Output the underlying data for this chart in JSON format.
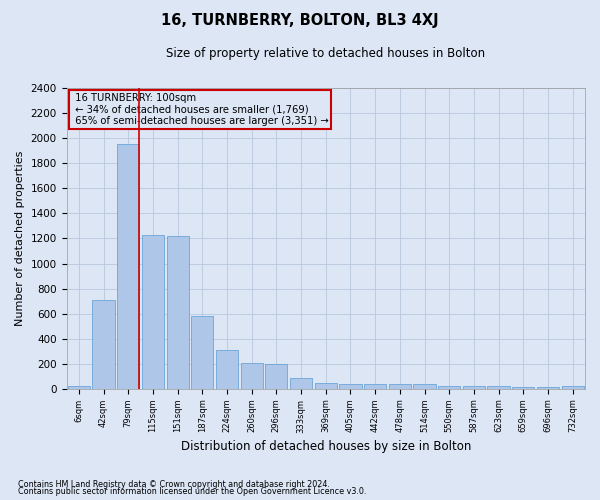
{
  "title": "16, TURNBERRY, BOLTON, BL3 4XJ",
  "subtitle": "Size of property relative to detached houses in Bolton",
  "xlabel": "Distribution of detached houses by size in Bolton",
  "ylabel": "Number of detached properties",
  "footnote1": "Contains HM Land Registry data © Crown copyright and database right 2024.",
  "footnote2": "Contains public sector information licensed under the Open Government Licence v3.0.",
  "annotation_line1": "16 TURNBERRY: 100sqm",
  "annotation_line2": "← 34% of detached houses are smaller (1,769)",
  "annotation_line3": "65% of semi-detached houses are larger (3,351) →",
  "bar_color": "#aec6e8",
  "bar_edge_color": "#5b9bd5",
  "line_color": "#cc0000",
  "background_color": "#dce6f5",
  "categories": [
    "6sqm",
    "42sqm",
    "79sqm",
    "115sqm",
    "151sqm",
    "187sqm",
    "224sqm",
    "260sqm",
    "296sqm",
    "333sqm",
    "369sqm",
    "405sqm",
    "442sqm",
    "478sqm",
    "514sqm",
    "550sqm",
    "587sqm",
    "623sqm",
    "659sqm",
    "696sqm",
    "732sqm"
  ],
  "values": [
    20,
    710,
    1950,
    1230,
    1220,
    580,
    310,
    205,
    200,
    85,
    50,
    40,
    40,
    35,
    35,
    25,
    25,
    20,
    15,
    12,
    20
  ],
  "ylim": [
    0,
    2400
  ],
  "yticks": [
    0,
    200,
    400,
    600,
    800,
    1000,
    1200,
    1400,
    1600,
    1800,
    2000,
    2200,
    2400
  ],
  "property_bin_index": 2,
  "grid_color": "#b8c8de"
}
